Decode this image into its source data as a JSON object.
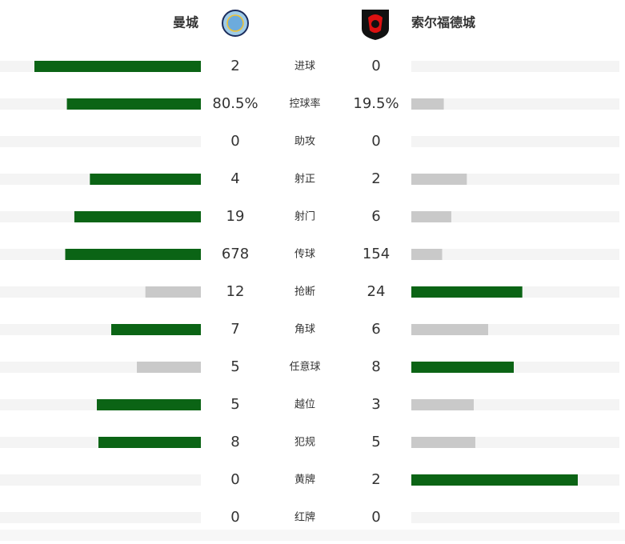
{
  "header": {
    "home": "曼城",
    "away": "索尔福德城"
  },
  "rows": [
    {
      "label": "进球",
      "home": 2,
      "away": 0
    },
    {
      "label": "控球率",
      "home": {
        "value": 80.5,
        "label": "80.5%"
      },
      "away": {
        "value": 19.5,
        "label": "19.5%"
      }
    },
    {
      "label": "助攻",
      "home": 0,
      "away": 0
    },
    {
      "label": "射正",
      "home": 4,
      "away": 2
    },
    {
      "label": "射门",
      "home": 19,
      "away": 6
    },
    {
      "label": "传球",
      "home": 678,
      "away": 154
    },
    {
      "label": "抢断",
      "home": 12,
      "away": 24
    },
    {
      "label": "角球",
      "home": 7,
      "away": 6
    },
    {
      "label": "任意球",
      "home": 5,
      "away": 8
    },
    {
      "label": "越位",
      "home": 5,
      "away": 3
    },
    {
      "label": "犯规",
      "home": 8,
      "away": 5
    },
    {
      "label": "黄牌",
      "home": 0,
      "away": 2
    },
    {
      "label": "红牌",
      "home": 0,
      "away": 0
    }
  ]
}
